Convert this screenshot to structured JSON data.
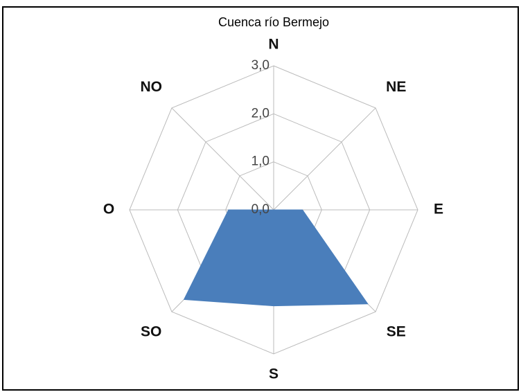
{
  "chart_data": {
    "type": "radar",
    "title": "Cuenca río Bermejo",
    "categories": [
      "N",
      "NE",
      "E",
      "SE",
      "S",
      "SO",
      "O",
      "NO"
    ],
    "values": [
      0,
      0,
      0.6,
      2.77,
      2.0,
      2.64,
      0.94,
      0
    ],
    "color": "#4a7ebb",
    "ylim": [
      0,
      3
    ],
    "yticks": [
      {
        "value": 0,
        "label": "0,0"
      },
      {
        "value": 1,
        "label": "1,0"
      },
      {
        "value": 2,
        "label": "2,0"
      },
      {
        "value": 3,
        "label": "3,0"
      }
    ],
    "grid": true
  }
}
